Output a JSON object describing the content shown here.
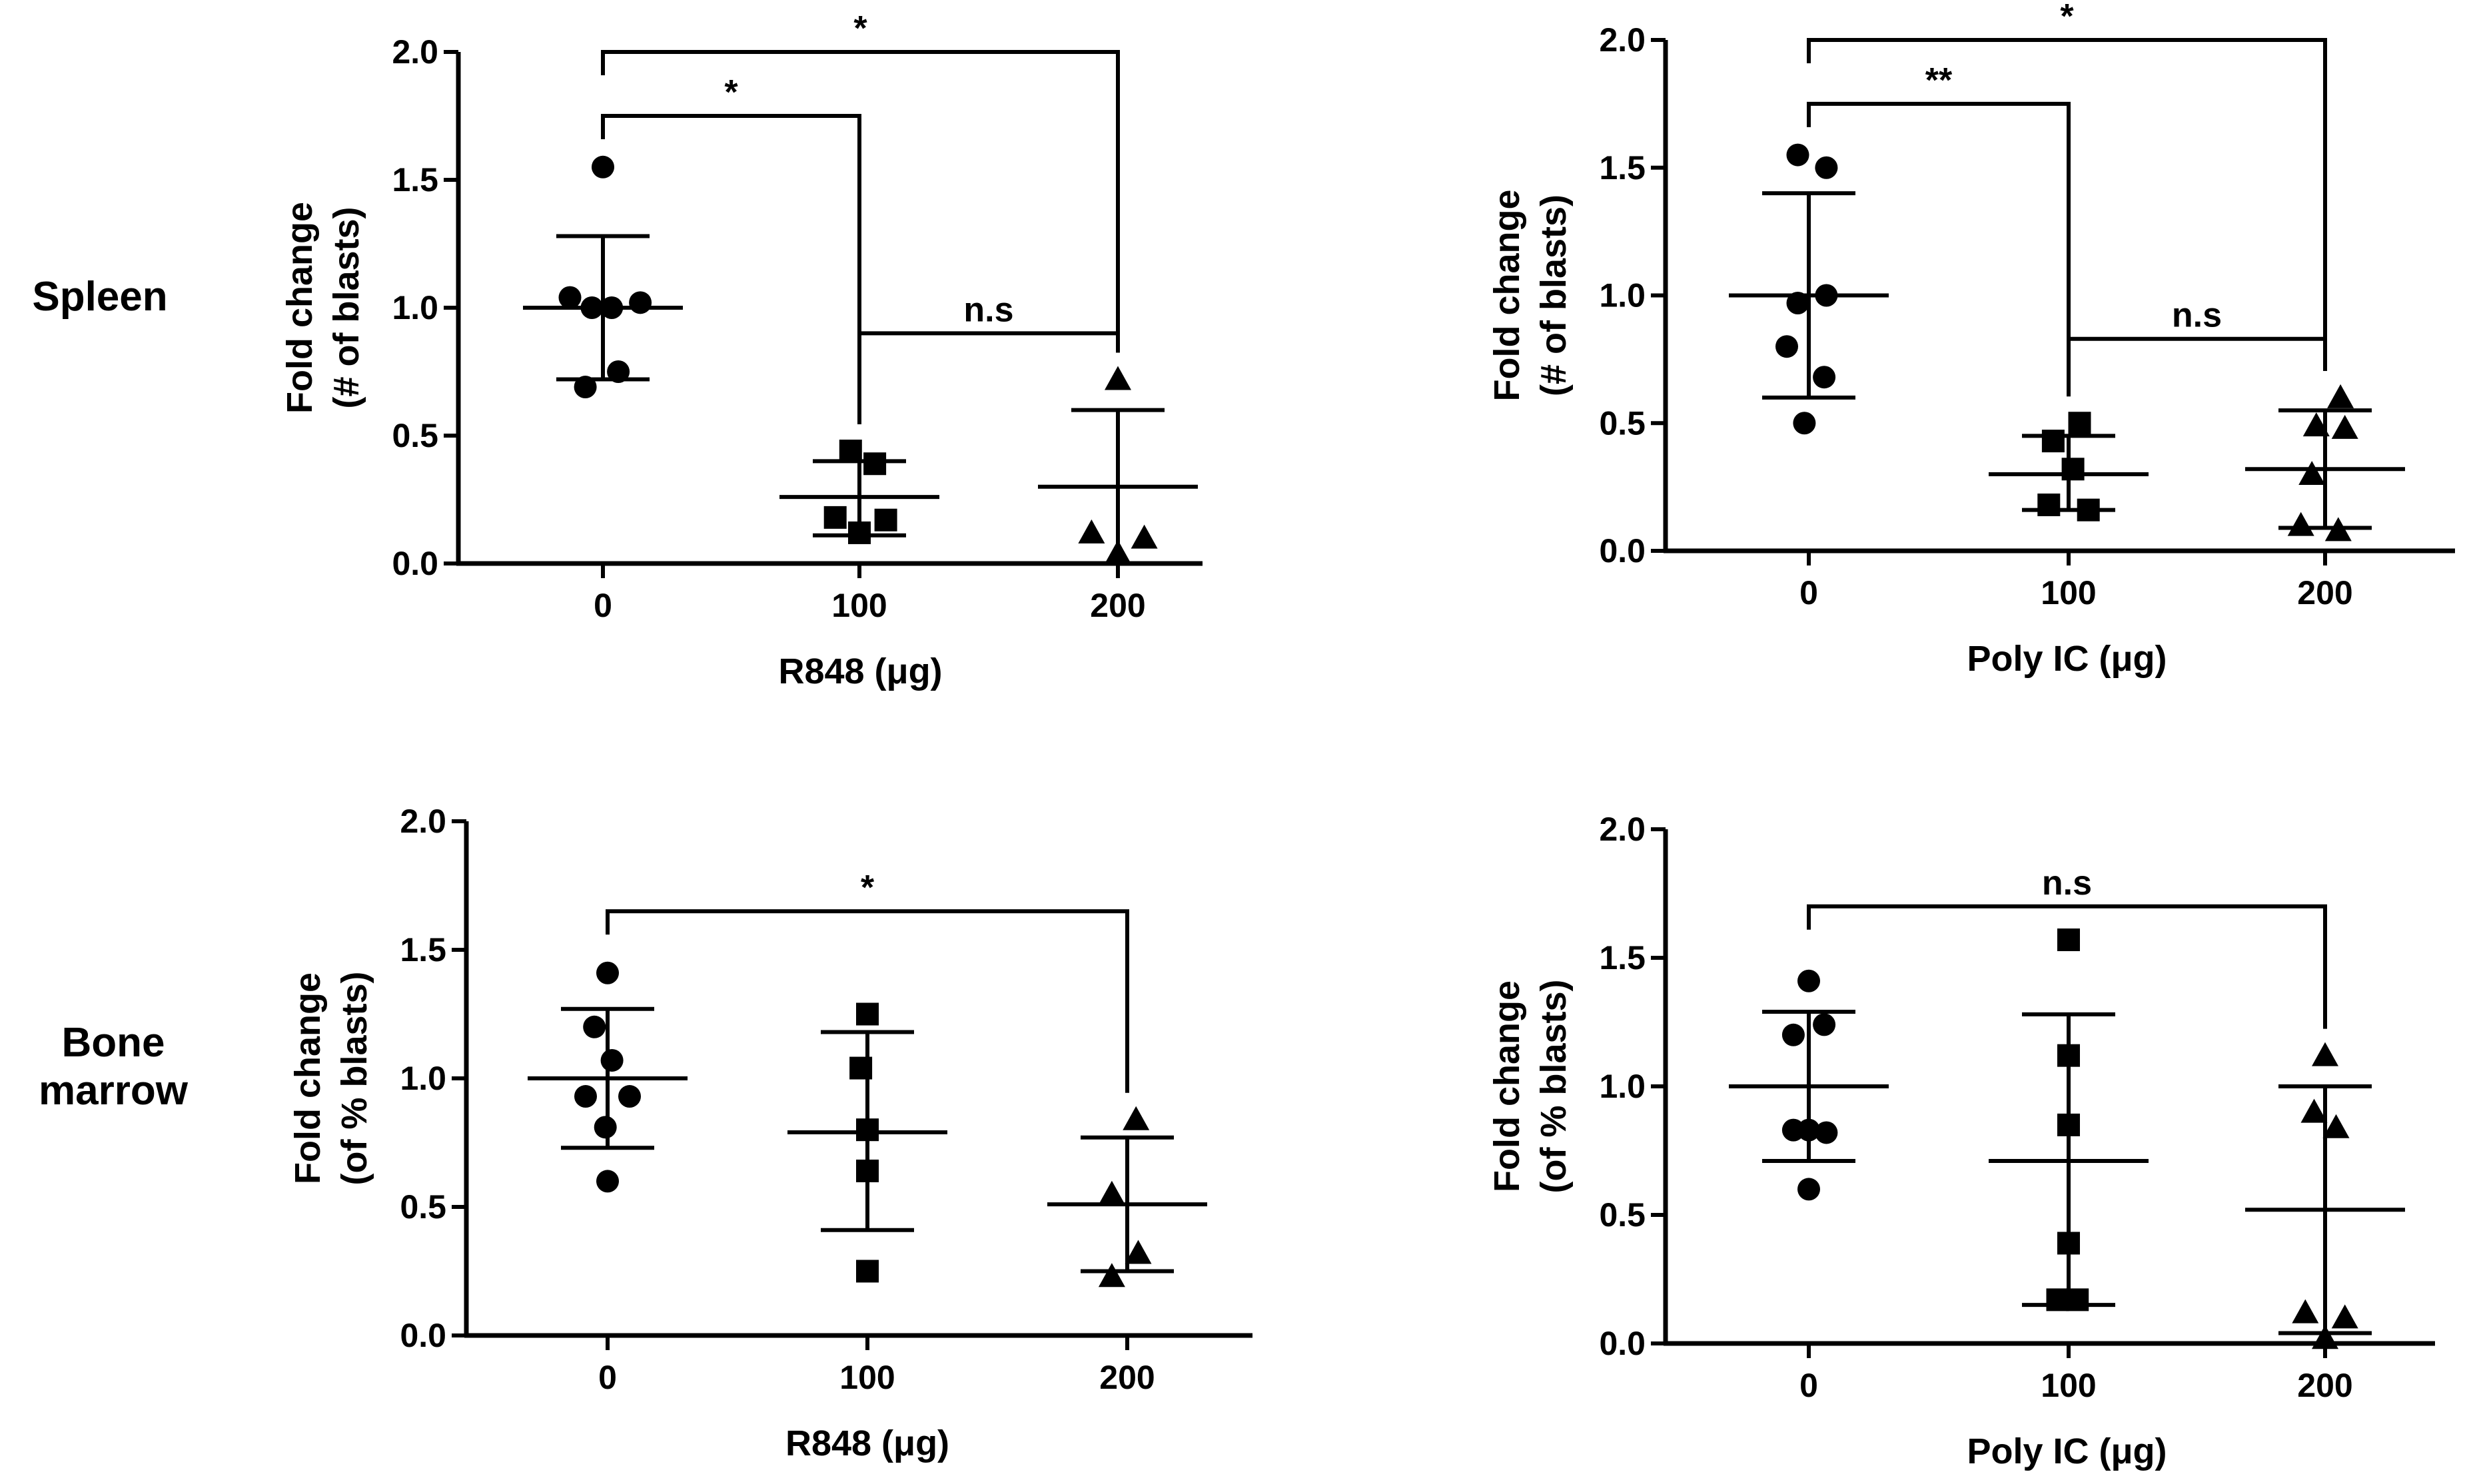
{
  "row_labels": {
    "spleen": "Spleen",
    "bone_marrow_line1": "Bone",
    "bone_marrow_line2": "marrow"
  },
  "chart_data": [
    {
      "type": "scatter",
      "panel": "spleen-r848",
      "xlabel": "R848 (μg)",
      "ylabel_line1": "Fold change",
      "ylabel_line2": "(# of blasts)",
      "ylim": [
        0,
        2
      ],
      "yticks": [
        "0.0",
        "0.5",
        "1.0",
        "1.5",
        "2.0"
      ],
      "categories": [
        "0",
        "100",
        "200"
      ],
      "groups": [
        {
          "category": "0",
          "marker": "circle",
          "points": [
            [
              0,
              1.55
            ],
            [
              -0.15,
              1.04
            ],
            [
              -0.05,
              1.0
            ],
            [
              0.04,
              1.0
            ],
            [
              0.17,
              1.02
            ],
            [
              0.07,
              0.75
            ],
            [
              -0.08,
              0.69
            ]
          ],
          "mean": 1.0,
          "sd_low": 0.72,
          "sd_high": 1.28
        },
        {
          "category": "100",
          "marker": "square",
          "points": [
            [
              -0.04,
              0.44
            ],
            [
              0.07,
              0.39
            ],
            [
              -0.11,
              0.18
            ],
            [
              0.12,
              0.17
            ],
            [
              0.0,
              0.12
            ]
          ],
          "mean": 0.26,
          "sd_low": 0.11,
          "sd_high": 0.4
        },
        {
          "category": "200",
          "marker": "triangle",
          "points": [
            [
              0.0,
              0.72
            ],
            [
              -0.12,
              0.12
            ],
            [
              0.12,
              0.1
            ],
            [
              0.0,
              0.04
            ]
          ],
          "mean": 0.3,
          "sd_low": 0.0,
          "sd_high": 0.6
        }
      ],
      "significance": [
        {
          "from": 0,
          "to": 2,
          "y": 2.0,
          "label": "*"
        },
        {
          "from": 0,
          "to": 1,
          "y": 1.75,
          "label": "*"
        },
        {
          "from": 1,
          "to": 2,
          "y": 0.9,
          "label": "n.s"
        }
      ]
    },
    {
      "type": "scatter",
      "panel": "spleen-polyic",
      "xlabel": "Poly IC (μg)",
      "ylabel_line1": "Fold change",
      "ylabel_line2": "(# of blasts)",
      "ylim": [
        0,
        2
      ],
      "yticks": [
        "0.0",
        "0.5",
        "1.0",
        "1.5",
        "2.0"
      ],
      "categories": [
        "0",
        "100",
        "200"
      ],
      "groups": [
        {
          "category": "0",
          "marker": "circle",
          "points": [
            [
              -0.05,
              1.55
            ],
            [
              0.08,
              1.5
            ],
            [
              0.08,
              1.0
            ],
            [
              -0.05,
              0.97
            ],
            [
              -0.1,
              0.8
            ],
            [
              0.07,
              0.68
            ],
            [
              -0.02,
              0.5
            ]
          ],
          "mean": 1.0,
          "sd_low": 0.6,
          "sd_high": 1.4
        },
        {
          "category": "100",
          "marker": "square",
          "points": [
            [
              0.05,
              0.5
            ],
            [
              -0.07,
              0.43
            ],
            [
              0.02,
              0.32
            ],
            [
              -0.09,
              0.18
            ],
            [
              0.09,
              0.16
            ]
          ],
          "mean": 0.3,
          "sd_low": 0.16,
          "sd_high": 0.45
        },
        {
          "category": "200",
          "marker": "triangle",
          "points": [
            [
              0.07,
              0.6
            ],
            [
              -0.04,
              0.49
            ],
            [
              0.09,
              0.48
            ],
            [
              -0.06,
              0.3
            ],
            [
              -0.11,
              0.1
            ],
            [
              0.06,
              0.08
            ]
          ],
          "mean": 0.32,
          "sd_low": 0.09,
          "sd_high": 0.55
        }
      ],
      "significance": [
        {
          "from": 0,
          "to": 2,
          "y": 2.0,
          "label": "*"
        },
        {
          "from": 0,
          "to": 1,
          "y": 1.75,
          "label": "**"
        },
        {
          "from": 1,
          "to": 2,
          "y": 0.83,
          "label": "n.s"
        }
      ]
    },
    {
      "type": "scatter",
      "panel": "marrow-r848",
      "xlabel": "R848 (μg)",
      "ylabel_line1": "Fold change",
      "ylabel_line2": "(of % blasts)",
      "ylim": [
        0,
        2
      ],
      "yticks": [
        "0.0",
        "0.5",
        "1.0",
        "1.5",
        "2.0"
      ],
      "categories": [
        "0",
        "100",
        "200"
      ],
      "groups": [
        {
          "category": "0",
          "marker": "circle",
          "points": [
            [
              0.0,
              1.41
            ],
            [
              -0.06,
              1.2
            ],
            [
              0.02,
              1.07
            ],
            [
              -0.1,
              0.93
            ],
            [
              0.1,
              0.93
            ],
            [
              -0.01,
              0.81
            ],
            [
              0.0,
              0.6
            ]
          ],
          "mean": 1.0,
          "sd_low": 0.73,
          "sd_high": 1.27
        },
        {
          "category": "100",
          "marker": "square",
          "points": [
            [
              0.0,
              1.25
            ],
            [
              -0.03,
              1.04
            ],
            [
              0.0,
              0.8
            ],
            [
              0.0,
              0.64
            ],
            [
              0.0,
              0.25
            ]
          ],
          "mean": 0.79,
          "sd_low": 0.41,
          "sd_high": 1.18
        },
        {
          "category": "200",
          "marker": "triangle",
          "points": [
            [
              0.04,
              0.84
            ],
            [
              -0.07,
              0.55
            ],
            [
              0.05,
              0.32
            ],
            [
              -0.07,
              0.23
            ]
          ],
          "mean": 0.51,
          "sd_low": 0.25,
          "sd_high": 0.77
        }
      ],
      "significance": [
        {
          "from": 0,
          "to": 2,
          "y": 1.65,
          "label": "*"
        }
      ]
    },
    {
      "type": "scatter",
      "panel": "marrow-polyic",
      "xlabel": "Poly IC (μg)",
      "ylabel_line1": "Fold change",
      "ylabel_line2": "(of % blasts)",
      "ylim": [
        0,
        2
      ],
      "yticks": [
        "0.0",
        "0.5",
        "1.0",
        "1.5",
        "2.0"
      ],
      "categories": [
        "0",
        "100",
        "200"
      ],
      "groups": [
        {
          "category": "0",
          "marker": "circle",
          "points": [
            [
              0.0,
              1.41
            ],
            [
              -0.07,
              1.2
            ],
            [
              0.07,
              1.24
            ],
            [
              -0.07,
              0.83
            ],
            [
              0.08,
              0.82
            ],
            [
              0.0,
              0.83
            ],
            [
              0.0,
              0.6
            ]
          ],
          "mean": 1.0,
          "sd_low": 0.71,
          "sd_high": 1.29
        },
        {
          "category": "100",
          "marker": "square",
          "points": [
            [
              0.0,
              1.57
            ],
            [
              0.0,
              1.12
            ],
            [
              0.0,
              0.85
            ],
            [
              0.0,
              0.39
            ],
            [
              -0.05,
              0.17
            ],
            [
              0.04,
              0.17
            ]
          ],
          "mean": 0.71,
          "sd_low": 0.15,
          "sd_high": 1.28
        },
        {
          "category": "200",
          "marker": "triangle",
          "points": [
            [
              0.0,
              1.12
            ],
            [
              -0.05,
              0.9
            ],
            [
              0.05,
              0.84
            ],
            [
              -0.09,
              0.12
            ],
            [
              0.09,
              0.1
            ],
            [
              0.0,
              0.02
            ]
          ],
          "mean": 0.52,
          "sd_low": 0.04,
          "sd_high": 1.0
        }
      ],
      "significance": [
        {
          "from": 0,
          "to": 2,
          "y": 1.7,
          "label": "n.s"
        }
      ]
    }
  ]
}
